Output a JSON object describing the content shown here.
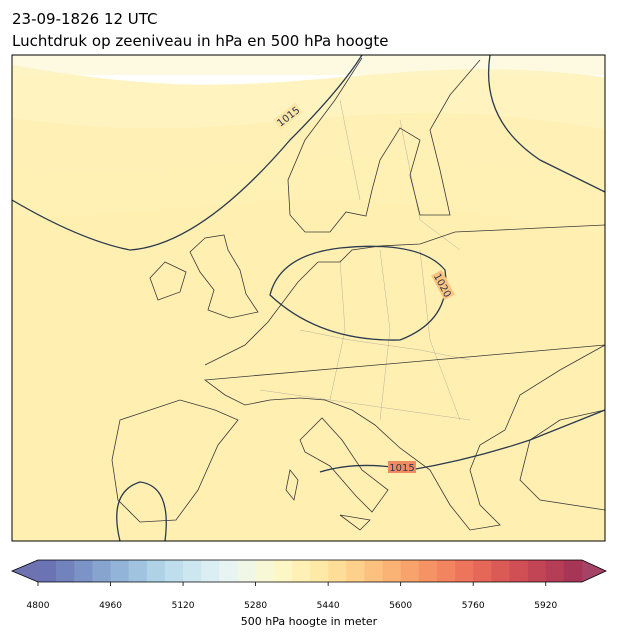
{
  "title": "23-09-1826 12 UTC",
  "subtitle": "Luchtdruk op zeeniveau in hPa en 500 hPa hoogte",
  "contour_labels": [
    1015,
    1020,
    1015
  ],
  "colorbar": {
    "label": "500 hPa hoogte in meter",
    "range": [
      4800,
      6000
    ],
    "ticks": [
      4800,
      4960,
      5120,
      5280,
      5440,
      5600,
      5760,
      5920
    ],
    "colors": [
      "#6b73b5",
      "#7282bd",
      "#7b93c6",
      "#86a4cf",
      "#92b4d8",
      "#a0c4e0",
      "#afd2e7",
      "#bedded",
      "#cde7f1",
      "#dbeef3",
      "#e8f4f1",
      "#f1f7e6",
      "#f8f8d6",
      "#fdf6c5",
      "#fff1b5",
      "#ffe9a6",
      "#fedd98",
      "#fdd08b",
      "#fcc17f",
      "#fbb275",
      "#f9a36c",
      "#f69365",
      "#f2845f",
      "#ec755b",
      "#e46757",
      "#da5a55",
      "#cf4f55",
      "#c24555",
      "#b53d55",
      "#a73555"
    ],
    "under_color": "#5f63a8",
    "over_color": "#9a2f55"
  }
}
